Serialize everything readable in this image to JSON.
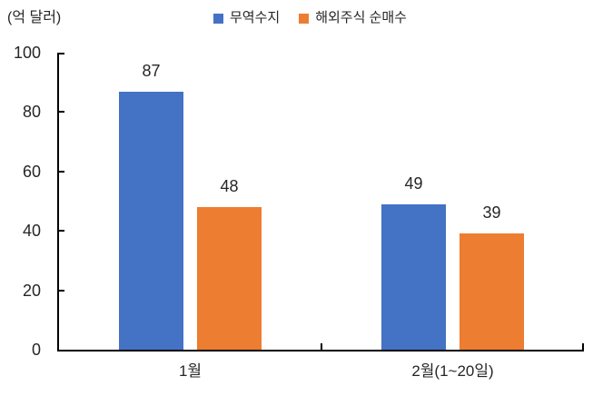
{
  "chart_data": {
    "type": "bar",
    "title": "",
    "xlabel": "",
    "ylabel": "(억 달러)",
    "categories": [
      "1월",
      "2월(1~20일)"
    ],
    "series": [
      {
        "name": "무역수지",
        "color": "#4472C4",
        "values": [
          87,
          49
        ]
      },
      {
        "name": "해외주식 순매수",
        "color": "#ED7D31",
        "values": [
          48,
          39
        ]
      }
    ],
    "ylim": [
      0,
      100
    ],
    "yticks": [
      0,
      20,
      40,
      60,
      80,
      100
    ],
    "grid": false,
    "legend_position": "top",
    "data_labels": true,
    "axis_color": "#000000"
  }
}
